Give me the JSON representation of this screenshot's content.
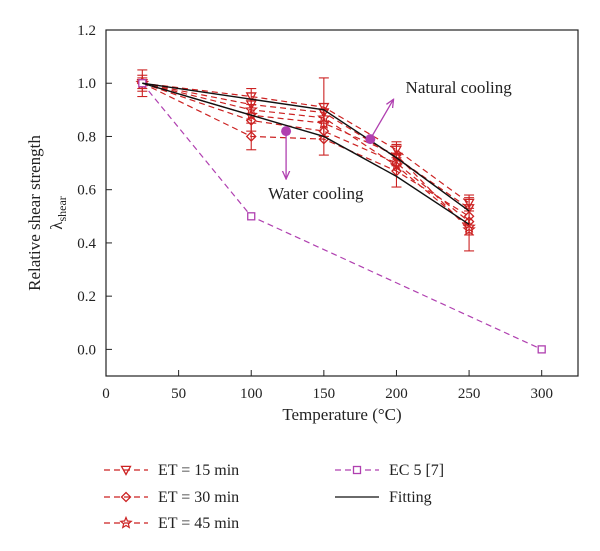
{
  "chart_data": {
    "type": "line",
    "xlabel": "Temperature (°C)",
    "ylabel": "Relative shear strength",
    "ylabel_symbol": "λ",
    "ylabel_subscript": "shear",
    "xlim": [
      0,
      325
    ],
    "ylim": [
      -0.1,
      1.2
    ],
    "xticks": [
      0,
      50,
      100,
      150,
      200,
      250,
      300
    ],
    "yticks": [
      0.0,
      0.2,
      0.4,
      0.6,
      0.8,
      1.0,
      1.2
    ],
    "xtick_labels": [
      "0",
      "50",
      "100",
      "150",
      "200",
      "250",
      "300"
    ],
    "ytick_labels": [
      "0.0",
      "0.2",
      "0.4",
      "0.6",
      "0.8",
      "1.0",
      "1.2"
    ],
    "grid": false,
    "legend_position": "bottom",
    "series": [
      {
        "name": "ET = 15 min",
        "marker": "triangle-down",
        "style": "dashed",
        "color": "#cc2222",
        "curves": [
          {
            "x": [
              25,
              100,
              150,
              200,
              250
            ],
            "y": [
              1.0,
              0.95,
              0.91,
              0.75,
              0.55
            ],
            "err": [
              0.05,
              0.03,
              0.11,
              0.03,
              0.03
            ]
          },
          {
            "x": [
              25,
              100,
              150,
              200,
              250
            ],
            "y": [
              1.0,
              0.92,
              0.89,
              0.72,
              0.53
            ],
            "err": [
              0,
              0,
              0,
              0,
              0
            ]
          }
        ]
      },
      {
        "name": "ET = 30 min",
        "marker": "diamond",
        "style": "dashed",
        "color": "#cc2222",
        "curves": [
          {
            "x": [
              25,
              100,
              150,
              200,
              250
            ],
            "y": [
              1.0,
              0.8,
              0.79,
              0.67,
              0.5
            ],
            "err": [
              0.03,
              0.05,
              0.06,
              0.06,
              0.07
            ]
          },
          {
            "x": [
              25,
              100,
              150,
              200,
              250
            ],
            "y": [
              1.0,
              0.86,
              0.82,
              0.7,
              0.48
            ],
            "err": [
              0,
              0,
              0,
              0,
              0
            ]
          }
        ]
      },
      {
        "name": "ET = 45 min",
        "marker": "star",
        "style": "dashed",
        "color": "#cc2222",
        "curves": [
          {
            "x": [
              25,
              100,
              150,
              200,
              250
            ],
            "y": [
              1.0,
              0.88,
              0.85,
              0.73,
              0.45
            ],
            "err": [
              0.02,
              0.06,
              0.05,
              0.04,
              0.08
            ]
          },
          {
            "x": [
              25,
              100,
              150,
              200,
              250
            ],
            "y": [
              1.0,
              0.9,
              0.87,
              0.69,
              0.46
            ],
            "err": [
              0,
              0,
              0,
              0,
              0
            ]
          }
        ]
      },
      {
        "name": "EC 5 [7]",
        "marker": "square",
        "style": "dashed",
        "color": "#b040b0",
        "curves": [
          {
            "x": [
              25,
              100,
              300
            ],
            "y": [
              1.0,
              0.5,
              0.0
            ],
            "err": [
              0,
              0,
              0
            ]
          }
        ]
      },
      {
        "name": "Fitting",
        "marker": "none",
        "style": "solid",
        "color": "#111111",
        "curves": [
          {
            "x": [
              25,
              100,
              150,
              200,
              250
            ],
            "y": [
              1.0,
              0.94,
              0.9,
              0.72,
              0.52
            ],
            "err": [
              0,
              0,
              0,
              0,
              0
            ]
          },
          {
            "x": [
              25,
              100,
              150,
              200,
              250
            ],
            "y": [
              1.0,
              0.88,
              0.8,
              0.65,
              0.47
            ],
            "err": [
              0,
              0,
              0,
              0,
              0
            ]
          }
        ]
      }
    ],
    "annotations": [
      {
        "text": "Natural cooling",
        "point": [
          182,
          0.79
        ],
        "arrow_to": [
          198,
          0.94
        ],
        "color": "#b040b0"
      },
      {
        "text": "Water cooling",
        "point": [
          124,
          0.82
        ],
        "arrow_to": [
          124,
          0.64
        ],
        "color": "#b040b0"
      }
    ]
  }
}
